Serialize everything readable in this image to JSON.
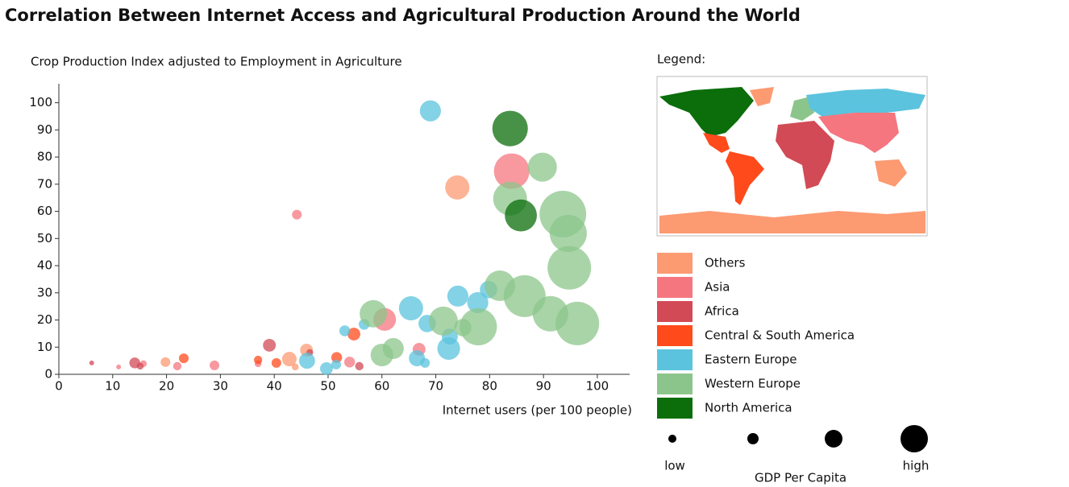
{
  "chart_data": {
    "type": "scatter",
    "title": "Correlation Between Internet Access and Agricultural Production Around the World",
    "y_label": "Crop Production Index adjusted to Employment in Agriculture",
    "x_label": "Internet users (per 100 people)",
    "legend_title": "Legend:",
    "size_legend": {
      "title": "GDP Per Capita",
      "low": "low",
      "high": "high"
    },
    "xlim": [
      0,
      106
    ],
    "ylim": [
      0,
      107
    ],
    "xticks": [
      0,
      10,
      20,
      30,
      40,
      50,
      60,
      70,
      80,
      90,
      100
    ],
    "yticks": [
      0,
      10,
      20,
      30,
      40,
      50,
      60,
      70,
      80,
      90,
      100
    ],
    "series": [
      {
        "name": "Others",
        "color": "#fc9a72",
        "x": [
          74,
          42.8,
          46,
          19.8,
          43.9
        ],
        "values": [
          68.8,
          5.6,
          8.9,
          4.5,
          2.7
        ],
        "size": [
          25,
          9,
          7,
          4,
          2
        ]
      },
      {
        "name": "Asia",
        "color": "#f6767f",
        "x": [
          84.1,
          60.5,
          44.2,
          66.9,
          54,
          28.9,
          15.7,
          11.1,
          22,
          37
        ],
        "values": [
          74.8,
          20.2,
          58.8,
          9.2,
          4.5,
          3.3,
          3.9,
          2.7,
          3,
          3.9
        ],
        "size": [
          54,
          22,
          4,
          7,
          5,
          4,
          2,
          1,
          3,
          2
        ]
      },
      {
        "name": "Africa",
        "color": "#d24a55",
        "x": [
          39.1,
          14.1,
          6.1,
          55.8,
          46.6,
          15.1
        ],
        "values": [
          10.7,
          4.2,
          4.2,
          3,
          8,
          3
        ],
        "size": [
          7,
          5,
          1,
          3,
          2,
          2
        ]
      },
      {
        "name": "Central & South America",
        "color": "#ff4a1c",
        "x": [
          54.8,
          51.6,
          23.2,
          40.4,
          37
        ],
        "values": [
          14.8,
          6.2,
          5.9,
          4.2,
          5.3
        ],
        "size": [
          7,
          5,
          4,
          4,
          3
        ]
      },
      {
        "name": "Eastern Europe",
        "color": "#5bc3de",
        "x": [
          69,
          65.4,
          74.1,
          77.8,
          79.8,
          68.4,
          72.4,
          72.6,
          66.5,
          68,
          56.7,
          53.1,
          46.1,
          49.7,
          51.5
        ],
        "values": [
          97,
          24.3,
          28.8,
          26.4,
          31.2,
          18.7,
          9.5,
          13.9,
          5.9,
          4.2,
          18.4,
          16,
          5,
          2.1,
          3.6
        ],
        "size": [
          19,
          25,
          19,
          19,
          13,
          13,
          22,
          11,
          11,
          4,
          5,
          5,
          11,
          7,
          4
        ]
      },
      {
        "name": "Western Europe",
        "color": "#8cc58b",
        "x": [
          89.8,
          83.8,
          93.6,
          94.6,
          94.8,
          86.5,
          81.9,
          91.3,
          96.3,
          77.9,
          71.4,
          58.4,
          60,
          62.1,
          75
        ],
        "values": [
          76.3,
          64.7,
          59,
          51.9,
          39.2,
          28.8,
          32.6,
          22.3,
          18.7,
          17.5,
          19.6,
          22.3,
          7.1,
          9.5,
          17.2
        ],
        "size": [
          36,
          49,
          93,
          59,
          81,
          75,
          40,
          54,
          81,
          59,
          36,
          32,
          22,
          19,
          13
        ]
      },
      {
        "name": "North America",
        "color": "#0b6e0b",
        "x": [
          83.8,
          85.8
        ],
        "values": [
          90.5,
          58.5
        ],
        "size": [
          54,
          44
        ]
      }
    ]
  }
}
